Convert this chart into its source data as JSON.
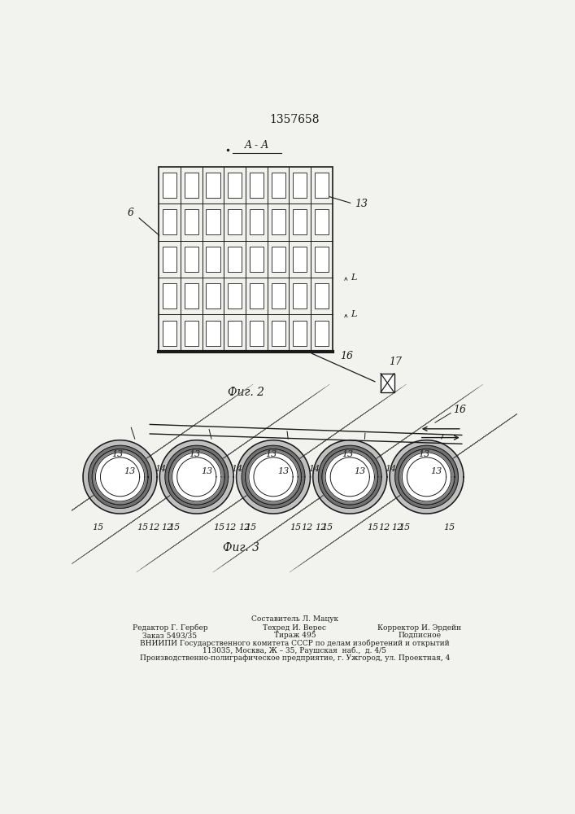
{
  "patent_number": "1357658",
  "bg_color": "#f2f2ee",
  "line_color": "#1a1a1a",
  "fig2_title": "Фиг. 2",
  "fig3_title": "Фиг. 3",
  "section_label": "A - A",
  "label_6": "6",
  "label_13": "13",
  "label_16": "16",
  "label_17": "17",
  "label_L": "L",
  "label_12": "12",
  "label_14": "14",
  "label_15": "15",
  "footer_line1": "Составитель Л. Мацук",
  "footer_line2a": "Редактор Г. Гербер",
  "footer_line2b": "Техред И. Верес",
  "footer_line2c": "Корректор И. Эрдейн",
  "footer_line3a": "Заказ 5493/35",
  "footer_line3b": "Тираж 495",
  "footer_line3c": "Подписное",
  "footer_line4": "ВНИИПИ Государственного комитета СССР по делам изобретений и открытий",
  "footer_line5": "113035, Москва, Ж – 35, Раушская  наб.,  д. 4/5",
  "footer_line6": "Производственно-полиграфическое предприятие, г. Ужгород, ул. Проектная, 4"
}
